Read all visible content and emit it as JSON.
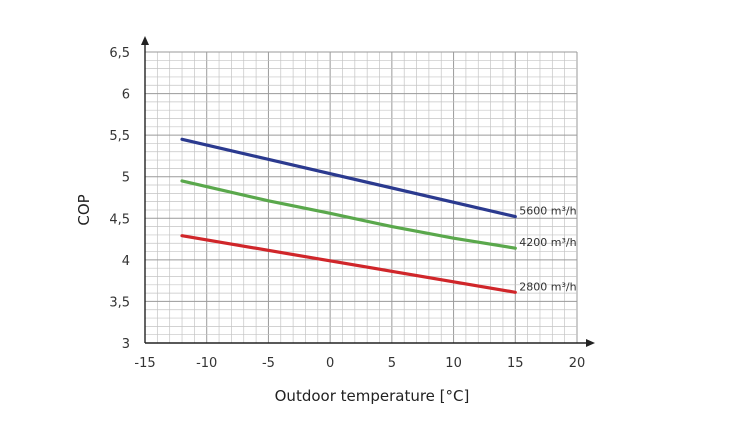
{
  "chart_data": {
    "type": "line",
    "title": "",
    "xlabel": "Outdoor temperature [°C]",
    "ylabel": "COP",
    "xlim": [
      -15,
      20
    ],
    "ylim": [
      3,
      6.5
    ],
    "x_ticks": [
      -15,
      -10,
      -5,
      0,
      5,
      10,
      15,
      20
    ],
    "x_tick_labels": [
      "-15",
      "-10",
      "-5",
      "0",
      "5",
      "10",
      "15",
      "20"
    ],
    "y_ticks": [
      3,
      3.5,
      4,
      4.5,
      5,
      5.5,
      6,
      6.5
    ],
    "y_tick_labels": [
      "3",
      "3,5",
      "4",
      "4,5",
      "5",
      "5,5",
      "6",
      "6,5"
    ],
    "grid": true,
    "legend": "none",
    "series": [
      {
        "name": "5600 m³/h",
        "color": "#2b3a8f",
        "x": [
          -12,
          15
        ],
        "y": [
          5.45,
          4.52
        ]
      },
      {
        "name": "4200 m³/h",
        "color": "#5aa84c",
        "x": [
          -12,
          -5,
          0,
          5,
          10,
          15
        ],
        "y": [
          4.95,
          4.71,
          4.56,
          4.4,
          4.26,
          4.14
        ]
      },
      {
        "name": "2800 m³/h",
        "color": "#d0262a",
        "x": [
          -12,
          15
        ],
        "y": [
          4.29,
          3.61
        ]
      }
    ]
  }
}
